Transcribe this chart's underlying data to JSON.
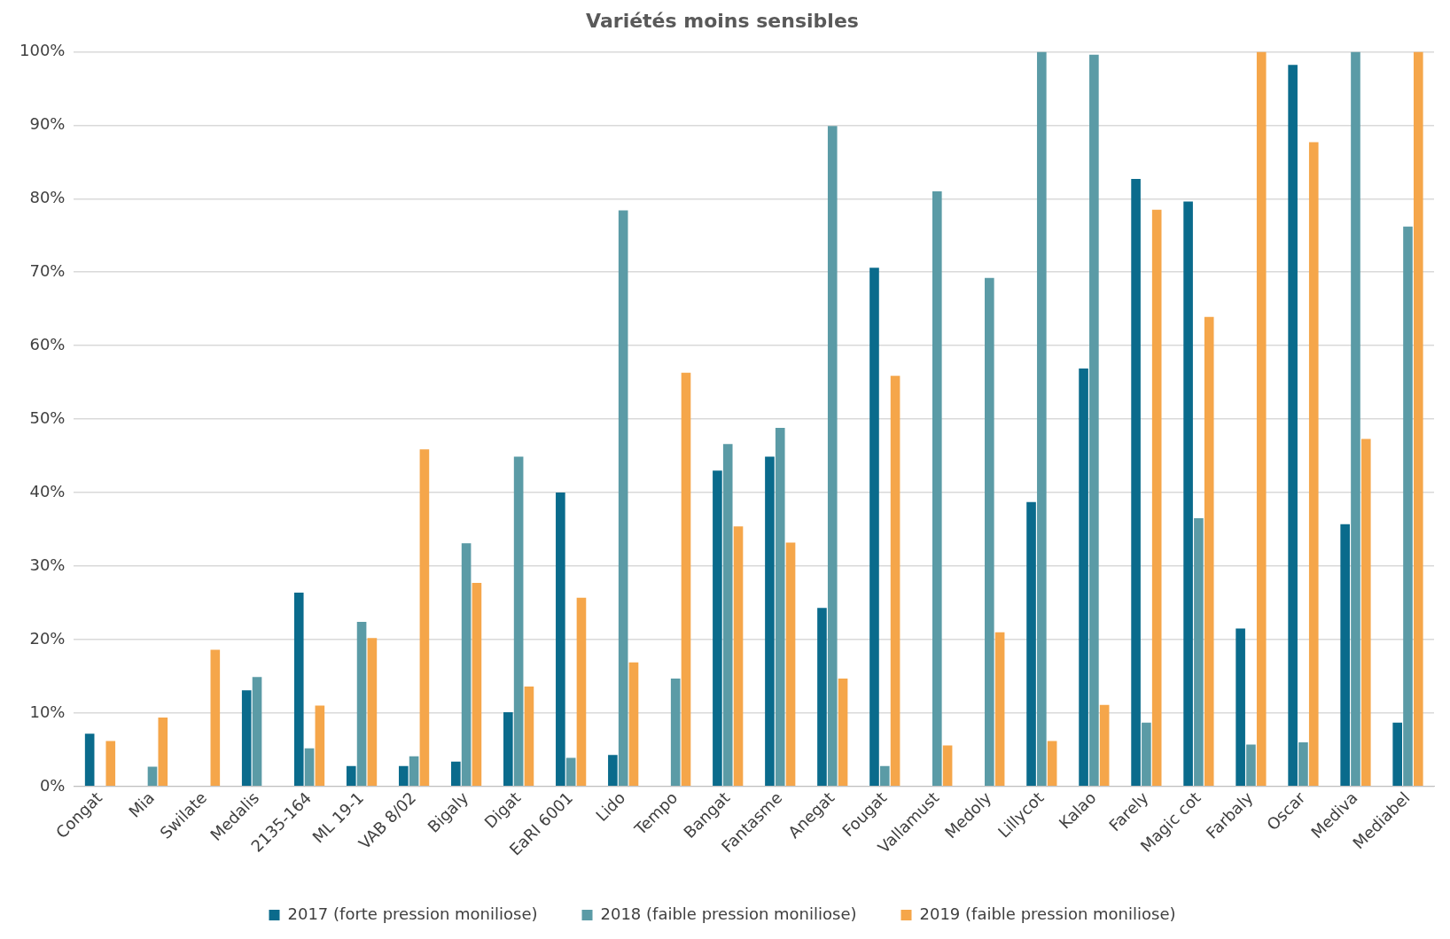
{
  "chart_data": {
    "type": "bar",
    "title": "Variétés moins sensibles",
    "categories": [
      "Congat",
      "Mia",
      "Swilate",
      "Medalis",
      "2135-164",
      "ML 19-1",
      "VAB 8/02",
      "Bigaly",
      "Digat",
      "EaRI 6001",
      "Lido",
      "Tempo",
      "Bangat",
      "Fantasme",
      "Anegat",
      "Fougat",
      "Vallamust",
      "Medoly",
      "Lillycot",
      "Kalao",
      "Farely",
      "Magic cot",
      "Farbaly",
      "Oscar",
      "Mediva",
      "Mediabel"
    ],
    "series": [
      {
        "name": "2017 (forte pression moniliose)",
        "color": "#0a6b8c",
        "values": [
          7.2,
          null,
          null,
          13.1,
          26.4,
          2.8,
          2.8,
          3.4,
          10.1,
          40,
          4.3,
          null,
          43,
          44.9,
          24.3,
          70.6,
          null,
          null,
          38.7,
          56.9,
          82.7,
          79.6,
          21.5,
          98.2,
          35.7,
          8.7
        ]
      },
      {
        "name": "2018 (faible pression moniliose)",
        "color": "#5b9ba6",
        "values": [
          null,
          2.7,
          null,
          14.9,
          5.2,
          22.4,
          4.1,
          33.1,
          44.9,
          3.9,
          78.4,
          14.7,
          46.6,
          48.8,
          89.9,
          2.8,
          81,
          69.2,
          100,
          99.6,
          8.7,
          36.5,
          5.7,
          6,
          100,
          76.2
        ]
      },
      {
        "name": "2019 (faible pression moniliose)",
        "color": "#f5a64a",
        "values": [
          6.2,
          9.4,
          18.6,
          null,
          11,
          20.2,
          45.9,
          27.7,
          13.6,
          25.7,
          16.9,
          56.3,
          35.4,
          33.2,
          14.7,
          55.9,
          5.6,
          21,
          6.2,
          11.1,
          78.5,
          63.9,
          100,
          87.7,
          47.3,
          100
        ]
      }
    ],
    "ylim": [
      0,
      100
    ],
    "yticks": [
      {
        "value": 0,
        "label": "0%"
      },
      {
        "value": 10,
        "label": "10%"
      },
      {
        "value": 20,
        "label": "20%"
      },
      {
        "value": 30,
        "label": "30%"
      },
      {
        "value": 40,
        "label": "40%"
      },
      {
        "value": 50,
        "label": "50%"
      },
      {
        "value": 60,
        "label": "60%"
      },
      {
        "value": 70,
        "label": "70%"
      },
      {
        "value": 80,
        "label": "80%"
      },
      {
        "value": 90,
        "label": "90%"
      },
      {
        "value": 100,
        "label": "100%"
      }
    ],
    "grid": "y",
    "legend": "bottom"
  }
}
